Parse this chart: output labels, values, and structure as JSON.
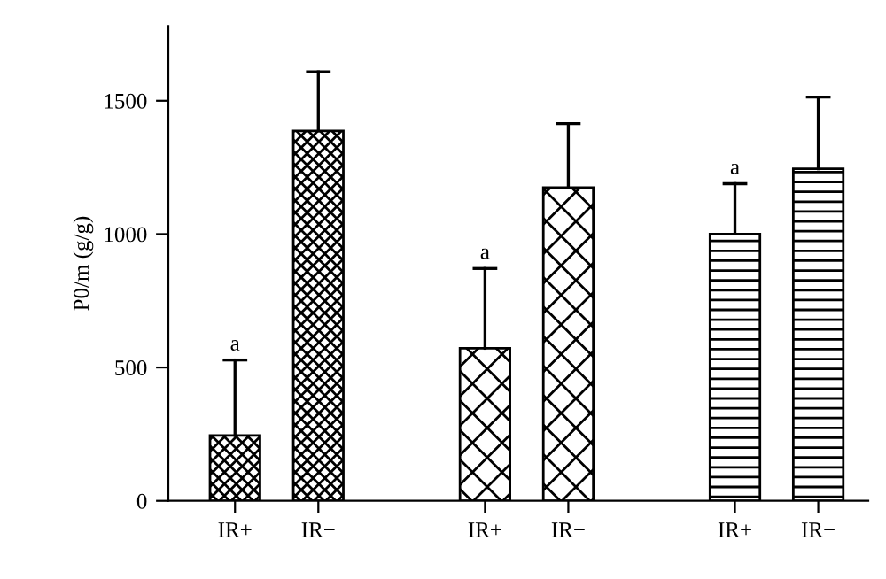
{
  "chart_data": {
    "type": "bar",
    "categories": [
      "IR+",
      "IR−",
      null,
      "IR+",
      "IR−",
      null,
      "IR+",
      "IR−"
    ],
    "values": [
      245,
      1387,
      null,
      572,
      1174,
      null,
      1000,
      1245
    ],
    "errors": [
      [
        245,
        528
      ],
      [
        1387,
        1608
      ],
      null,
      [
        572,
        871
      ],
      [
        1174,
        1414
      ],
      null,
      [
        1000,
        1189
      ],
      [
        1245,
        1514
      ]
    ],
    "colors": [
      "#000000",
      "#000000",
      null,
      "#000000",
      "#000000",
      null,
      "#000000",
      "#000000"
    ],
    "ylabel": "P0/m (g/g)",
    "ylim": [
      0,
      1780
    ],
    "yticks": [
      0,
      500,
      1000,
      1500
    ],
    "annotations": [
      "a",
      "a",
      "a"
    ],
    "grid": false,
    "legend": false
  }
}
